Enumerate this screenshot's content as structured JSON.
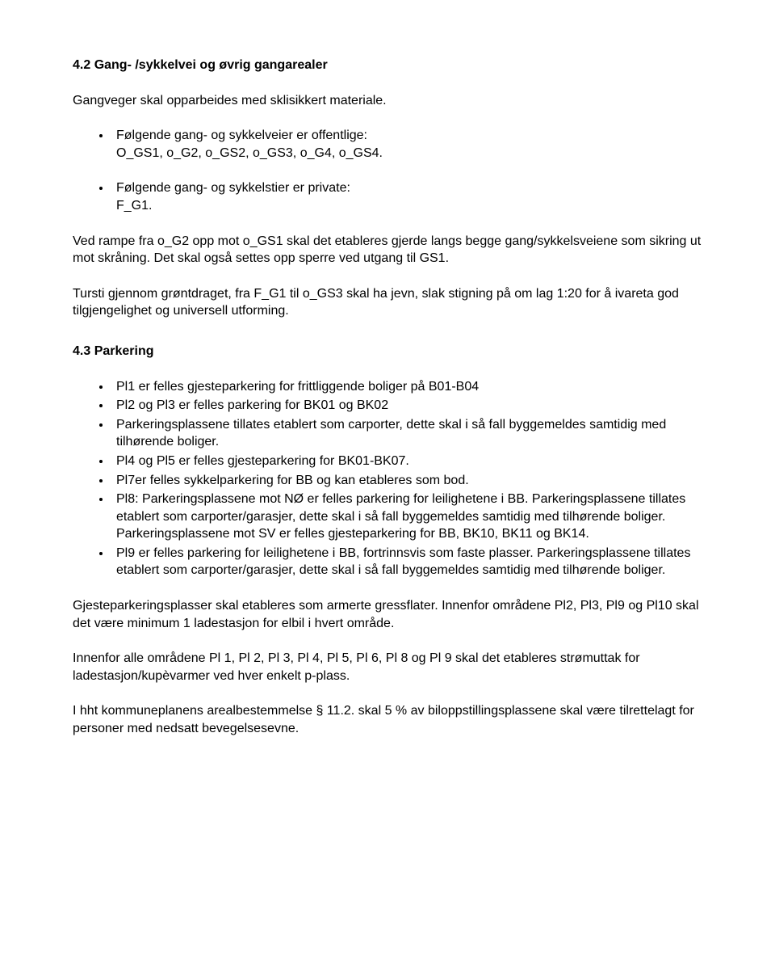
{
  "section42": {
    "title": "4.2 Gang- /sykkelvei og øvrig gangarealer",
    "intro": "Gangveger skal opparbeides med sklisikkert materiale.",
    "bullets": [
      {
        "lead": "Følgende gang- og sykkelveier er offentlige:",
        "body": "O_GS1, o_G2, o_GS2, o_GS3, o_G4, o_GS4."
      },
      {
        "lead": "Følgende gang- og sykkelstier er private:",
        "body": "F_G1."
      }
    ],
    "p1": "Ved rampe fra o_G2 opp mot o_GS1 skal det etableres gjerde langs begge gang/sykkelsveiene som sikring ut mot skråning. Det skal også settes opp sperre ved utgang til GS1.",
    "p2": "Tursti gjennom grøntdraget, fra F_G1 til o_GS3 skal ha jevn, slak stigning på om lag 1:20 for å ivareta god tilgjengelighet og universell utforming."
  },
  "section43": {
    "title": "4.3 Parkering",
    "bullets": [
      "Pl1 er felles gjesteparkering for frittliggende boliger på B01-B04",
      "Pl2 og Pl3 er felles parkering for BK01 og BK02",
      "Parkeringsplassene tillates etablert som carporter, dette skal i så fall byggemeldes samtidig med tilhørende boliger.",
      "Pl4 og Pl5 er felles gjesteparkering for BK01-BK07.",
      "Pl7er felles sykkelparkering for BB og kan etableres som bod.",
      "Pl8: Parkeringsplassene mot NØ er felles parkering for leilighetene i BB. Parkeringsplassene tillates etablert som carporter/garasjer, dette skal i så fall byggemeldes samtidig med tilhørende boliger. Parkeringsplassene mot SV er felles gjesteparkering for BB, BK10, BK11 og BK14.",
      "Pl9 er felles parkering for leilighetene i BB, fortrinnsvis som faste plasser. Parkeringsplassene tillates etablert som carporter/garasjer, dette skal i så fall byggemeldes samtidig med tilhørende boliger."
    ],
    "p1": "Gjesteparkeringsplasser skal etableres som armerte gressflater. Innenfor områdene Pl2, Pl3, Pl9 og Pl10 skal det være minimum 1 ladestasjon for elbil i hvert område.",
    "p2": "Innenfor alle områdene Pl 1, Pl 2, Pl 3, Pl 4, Pl 5, Pl 6, Pl 8 og Pl 9 skal det etableres strømuttak for ladestasjon/kupèvarmer ved hver enkelt p-plass.",
    "p3": "I hht kommuneplanens arealbestemmelse § 11.2. skal 5 % av biloppstillingsplassene skal være tilrettelagt for personer med nedsatt bevegelsesevne."
  }
}
